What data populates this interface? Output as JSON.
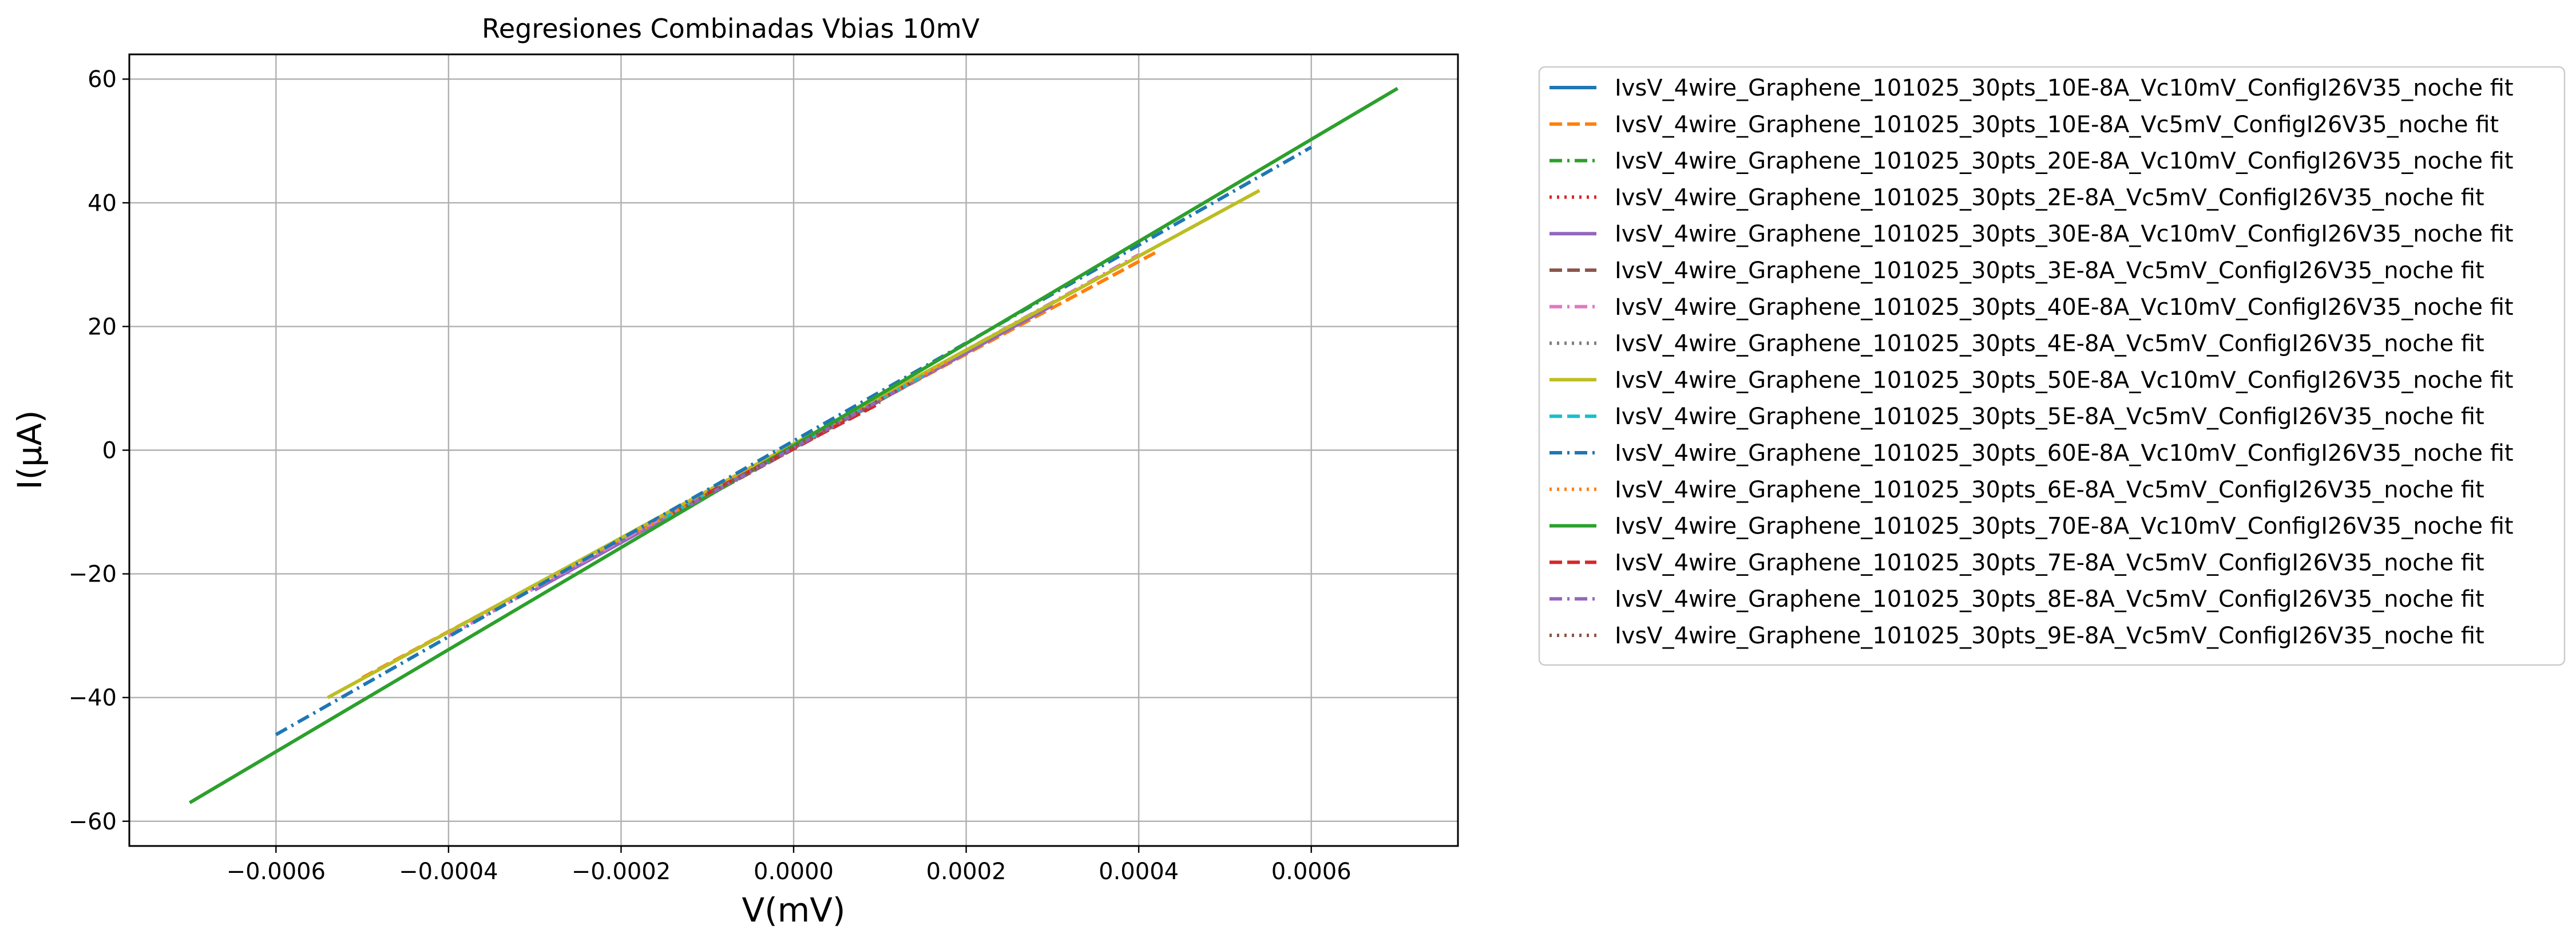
{
  "chart_data": {
    "type": "line",
    "title": "Regresiones Combinadas Vbias 10mV",
    "xlabel": "V(mV)",
    "ylabel": "I($\\mu$A)",
    "ylabel_display": "I(µA)",
    "xlim": [
      -0.00077,
      0.00077
    ],
    "ylim": [
      -64,
      64
    ],
    "xticks": [
      -0.0006,
      -0.0004,
      -0.0002,
      0.0,
      0.0002,
      0.0004,
      0.0006
    ],
    "xtick_labels": [
      "−0.0006",
      "−0.0004",
      "−0.0002",
      "0.0000",
      "0.0002",
      "0.0004",
      "0.0006"
    ],
    "yticks": [
      -60,
      -40,
      -20,
      0,
      20,
      40,
      60
    ],
    "ytick_labels": [
      "−60",
      "−40",
      "−20",
      "0",
      "20",
      "40",
      "60"
    ],
    "grid": true,
    "legend_position": "outside-right-top",
    "series": [
      {
        "name": "IvsV_4wire_Graphene_101025_30pts_10E-8A_Vc10mV_ConfigI26V35_noche fit",
        "color": "#1f77b4",
        "dash": "solid",
        "x": [
          -0.0001,
          0.0001
        ],
        "y": [
          -7.3,
          8.0
        ]
      },
      {
        "name": "IvsV_4wire_Graphene_101025_30pts_10E-8A_Vc5mV_ConfigI26V35_noche fit",
        "color": "#ff7f0e",
        "dash": "dashed",
        "x": [
          -0.0005,
          0.00042
        ],
        "y": [
          -36.8,
          32.0
        ]
      },
      {
        "name": "IvsV_4wire_Graphene_101025_30pts_20E-8A_Vc10mV_ConfigI26V35_noche fit",
        "color": "#2ca02c",
        "dash": "dashdot",
        "x": [
          -0.0002,
          0.0002
        ],
        "y": [
          -14.8,
          16.2
        ]
      },
      {
        "name": "IvsV_4wire_Graphene_101025_30pts_2E-8A_Vc5mV_ConfigI26V35_noche fit",
        "color": "#d62728",
        "dash": "dotted",
        "x": [
          -6e-05,
          6e-05
        ],
        "y": [
          -4.4,
          4.8
        ]
      },
      {
        "name": "IvsV_4wire_Graphene_101025_30pts_30E-8A_Vc10mV_ConfigI26V35_noche fit",
        "color": "#9467bd",
        "dash": "solid",
        "x": [
          -0.0003,
          0.0003
        ],
        "y": [
          -22.6,
          23.4
        ]
      },
      {
        "name": "IvsV_4wire_Graphene_101025_30pts_3E-8A_Vc5mV_ConfigI26V35_noche fit",
        "color": "#8c564b",
        "dash": "dashed",
        "x": [
          -0.0001,
          0.0001
        ],
        "y": [
          -7.4,
          7.8
        ]
      },
      {
        "name": "IvsV_4wire_Graphene_101025_30pts_40E-8A_Vc10mV_ConfigI26V35_noche fit",
        "color": "#e377c2",
        "dash": "dashdot",
        "x": [
          -0.0004,
          0.0004
        ],
        "y": [
          -30.0,
          31.6
        ]
      },
      {
        "name": "IvsV_4wire_Graphene_101025_30pts_4E-8A_Vc5mV_ConfigI26V35_noche fit",
        "color": "#7f7f7f",
        "dash": "dotted",
        "x": [
          -0.00012,
          0.00012
        ],
        "y": [
          -9.0,
          9.6
        ]
      },
      {
        "name": "IvsV_4wire_Graphene_101025_30pts_50E-8A_Vc10mV_ConfigI26V35_noche fit",
        "color": "#bcbd22",
        "dash": "solid",
        "x": [
          -0.00054,
          0.00054
        ],
        "y": [
          -40.0,
          42.0
        ]
      },
      {
        "name": "IvsV_4wire_Graphene_101025_30pts_5E-8A_Vc5mV_ConfigI26V35_noche fit",
        "color": "#17becf",
        "dash": "dashed",
        "x": [
          -0.00015,
          0.00015
        ],
        "y": [
          -11.0,
          12.0
        ]
      },
      {
        "name": "IvsV_4wire_Graphene_101025_30pts_60E-8A_Vc10mV_ConfigI26V35_noche fit",
        "color": "#1f77b4",
        "dash": "dashdot",
        "x": [
          -0.0006,
          0.0006
        ],
        "y": [
          -46.0,
          49.0
        ]
      },
      {
        "name": "IvsV_4wire_Graphene_101025_30pts_6E-8A_Vc5mV_ConfigI26V35_noche fit",
        "color": "#ff7f0e",
        "dash": "dotted",
        "x": [
          -0.00018,
          0.00018
        ],
        "y": [
          -13.2,
          14.4
        ]
      },
      {
        "name": "IvsV_4wire_Graphene_101025_30pts_70E-8A_Vc10mV_ConfigI26V35_noche fit",
        "color": "#2ca02c",
        "dash": "solid",
        "x": [
          -0.0007,
          0.0007
        ],
        "y": [
          -57.0,
          58.5
        ]
      },
      {
        "name": "IvsV_4wire_Graphene_101025_30pts_7E-8A_Vc5mV_ConfigI26V35_noche fit",
        "color": "#d62728",
        "dash": "dashed",
        "x": [
          -0.0001,
          0.0001
        ],
        "y": [
          -7.0,
          7.6
        ]
      },
      {
        "name": "IvsV_4wire_Graphene_101025_30pts_8E-8A_Vc5mV_ConfigI26V35_noche fit",
        "color": "#9467bd",
        "dash": "dashdot",
        "x": [
          -0.00012,
          0.00012
        ],
        "y": [
          -8.8,
          9.6
        ]
      },
      {
        "name": "IvsV_4wire_Graphene_101025_30pts_9E-8A_Vc5mV_ConfigI26V35_noche fit",
        "color": "#8c564b",
        "dash": "dotted",
        "x": [
          -0.00014,
          0.00014
        ],
        "y": [
          -10.2,
          11.2
        ]
      }
    ]
  }
}
